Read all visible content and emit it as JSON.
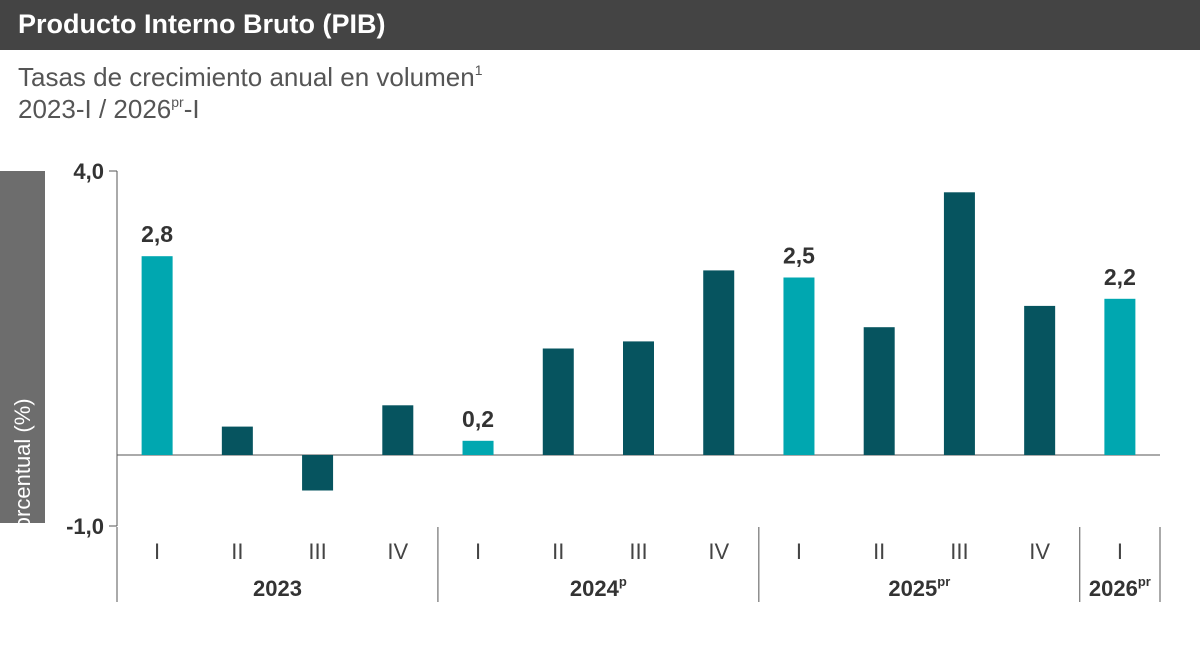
{
  "header": {
    "title": "Producto Interno Bruto (PIB)"
  },
  "subtitle": {
    "line1": "Tasas de crecimiento anual en volumen",
    "line1_sup": "1",
    "line2_a": "2023-I / 2026",
    "line2_sup": "pr",
    "line2_b": "-I"
  },
  "chart_data": {
    "type": "bar",
    "ylabel": "Variación porcentual (%)",
    "ylim": [
      -1.0,
      4.0
    ],
    "y_tick_labels": [
      "4,0",
      "-1,0"
    ],
    "categories": [
      "I",
      "II",
      "III",
      "IV",
      "I",
      "II",
      "III",
      "IV",
      "I",
      "II",
      "III",
      "IV",
      "I"
    ],
    "values": [
      2.8,
      0.4,
      -0.5,
      0.7,
      0.2,
      1.5,
      1.6,
      2.6,
      2.5,
      1.8,
      3.7,
      2.1,
      2.2
    ],
    "data_labels": [
      "2,8",
      "",
      "",
      "",
      "0,2",
      "",
      "",
      "",
      "2,5",
      "",
      "",
      "",
      "2,2"
    ],
    "highlight": [
      true,
      false,
      false,
      false,
      true,
      false,
      false,
      false,
      true,
      false,
      false,
      false,
      true
    ],
    "groups": [
      {
        "label": "2023",
        "sup": "",
        "count": 4
      },
      {
        "label": "2024",
        "sup": "p",
        "count": 4
      },
      {
        "label": "2025",
        "sup": "pr",
        "count": 4
      },
      {
        "label": "2026",
        "sup": "pr",
        "count": 1
      }
    ],
    "colors": {
      "highlight": "#00a7b0",
      "default": "#06545f",
      "axis": "#555555"
    }
  }
}
